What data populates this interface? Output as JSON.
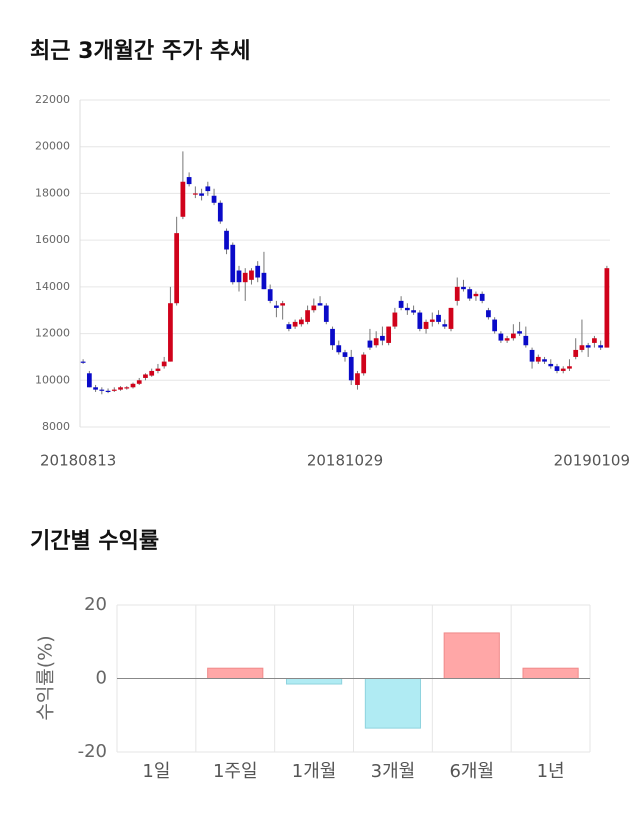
{
  "chart_data": [
    {
      "type": "candlestick",
      "title": "최근 3개월간 주가 추세",
      "categories": [
        "20180813",
        null,
        null,
        null,
        null,
        null,
        null,
        null,
        null,
        null,
        null,
        null,
        null,
        null,
        null,
        null,
        null,
        null,
        null,
        null,
        null,
        null,
        null,
        null,
        null,
        null,
        null,
        null,
        null,
        null,
        null,
        null,
        null,
        null,
        null,
        null,
        null,
        null,
        null,
        null,
        null,
        null,
        "20181029",
        null,
        null,
        null,
        null,
        null,
        null,
        null,
        null,
        null,
        null,
        null,
        null,
        null,
        null,
        null,
        null,
        null,
        null,
        null,
        null,
        null,
        null,
        null,
        null,
        null,
        null,
        null,
        null,
        null,
        null,
        null,
        null,
        null,
        null,
        null,
        null,
        null,
        null,
        null,
        null,
        null,
        "20190109"
      ],
      "open": [
        10800,
        10300,
        9700,
        9600,
        9550,
        9550,
        9600,
        9650,
        9700,
        9850,
        10100,
        10200,
        10400,
        10600,
        10800,
        13300,
        17000,
        18700,
        18000,
        18000,
        18300,
        17900,
        17600,
        16400,
        15800,
        14700,
        14200,
        14300,
        14900,
        14600,
        13900,
        13200,
        13200,
        12400,
        12300,
        12400,
        12500,
        13000,
        13300,
        13200,
        12200,
        11500,
        11200,
        11000,
        9800,
        10300,
        11700,
        11500,
        11900,
        11600,
        12300,
        13400,
        13100,
        13000,
        12900,
        12200,
        12500,
        12800,
        12400,
        12200,
        13400,
        14000,
        13900,
        13600,
        13700,
        13000,
        12600,
        12000,
        11700,
        11800,
        12100,
        11900,
        11300,
        10800,
        10900,
        10700,
        10600,
        10400,
        10500,
        11000,
        11300,
        11500,
        11600,
        11500,
        11400
      ],
      "high": [
        10900,
        10400,
        9800,
        9700,
        9650,
        9700,
        9750,
        9750,
        9900,
        10100,
        10300,
        10500,
        10700,
        11000,
        14000,
        17000,
        19800,
        18900,
        18300,
        18200,
        18500,
        18200,
        17700,
        16500,
        15900,
        14900,
        14800,
        14800,
        15100,
        15500,
        14100,
        13400,
        13400,
        12500,
        12600,
        12700,
        13200,
        13500,
        13600,
        13300,
        12300,
        11700,
        11300,
        11300,
        10400,
        11200,
        12200,
        12100,
        12300,
        12300,
        13100,
        13600,
        13300,
        13200,
        13000,
        12600,
        12900,
        13000,
        12600,
        13100,
        14400,
        14300,
        14000,
        13800,
        13800,
        13100,
        12700,
        12100,
        11900,
        12400,
        12500,
        12300,
        11400,
        11100,
        11000,
        10900,
        10700,
        10600,
        10900,
        11800,
        12600,
        11600,
        11900,
        11700,
        14900
      ],
      "low": [
        10700,
        9700,
        9500,
        9400,
        9450,
        9500,
        9550,
        9600,
        9650,
        9800,
        10000,
        10150,
        10300,
        10500,
        10800,
        13200,
        16900,
        18300,
        17800,
        17700,
        17900,
        17500,
        16700,
        15400,
        14100,
        13800,
        13400,
        14100,
        14200,
        13900,
        13300,
        12700,
        12600,
        12100,
        12200,
        12300,
        12400,
        12900,
        13200,
        12400,
        11300,
        11100,
        10800,
        9800,
        9600,
        10200,
        11300,
        11400,
        11500,
        11500,
        12200,
        13000,
        12800,
        12800,
        12100,
        12000,
        12300,
        12400,
        12200,
        12100,
        13200,
        13800,
        13400,
        13400,
        13300,
        12600,
        12000,
        11600,
        11600,
        11700,
        11900,
        11400,
        10500,
        10700,
        10700,
        10500,
        10300,
        10300,
        10400,
        10900,
        11200,
        11000,
        11400,
        11300,
        11400
      ],
      "close": [
        10750,
        9700,
        9600,
        9550,
        9500,
        9600,
        9700,
        9700,
        9850,
        10000,
        10250,
        10400,
        10500,
        10800,
        13300,
        16300,
        18500,
        18400,
        18000,
        17900,
        18100,
        17600,
        16800,
        15600,
        14200,
        14200,
        14600,
        14700,
        14400,
        13900,
        13400,
        13100,
        13300,
        12200,
        12500,
        12600,
        13000,
        13200,
        13200,
        12500,
        11500,
        11200,
        11000,
        10000,
        10300,
        11100,
        11400,
        11800,
        11700,
        12300,
        12900,
        13100,
        13000,
        12900,
        12200,
        12500,
        12600,
        12500,
        12300,
        13100,
        14000,
        13900,
        13500,
        13700,
        13400,
        12700,
        12100,
        11700,
        11800,
        12000,
        12000,
        11500,
        10800,
        11000,
        10800,
        10600,
        10400,
        10500,
        10600,
        11300,
        11500,
        11400,
        11800,
        11400,
        14800
      ],
      "up_color": "#d0021b",
      "down_color": "#0a0ac8",
      "ylim": [
        8000,
        22000
      ],
      "yticks": [
        8000,
        10000,
        12000,
        14000,
        16000,
        18000,
        20000,
        22000
      ],
      "grid": true
    },
    {
      "type": "bar",
      "title": "기간별 수익률",
      "y_label": "수익률(%)",
      "categories": [
        "1일",
        "1주일",
        "1개월",
        "3개월",
        "6개월",
        "1년"
      ],
      "values": [
        0,
        2.8,
        -1.5,
        -13.5,
        12.4,
        2.8
      ],
      "positive_color": "#ffa7a7",
      "negative_color": "#b0ebf3",
      "ylim": [
        -20,
        20
      ],
      "yticks": [
        -20,
        0,
        20
      ],
      "grid": true
    }
  ]
}
